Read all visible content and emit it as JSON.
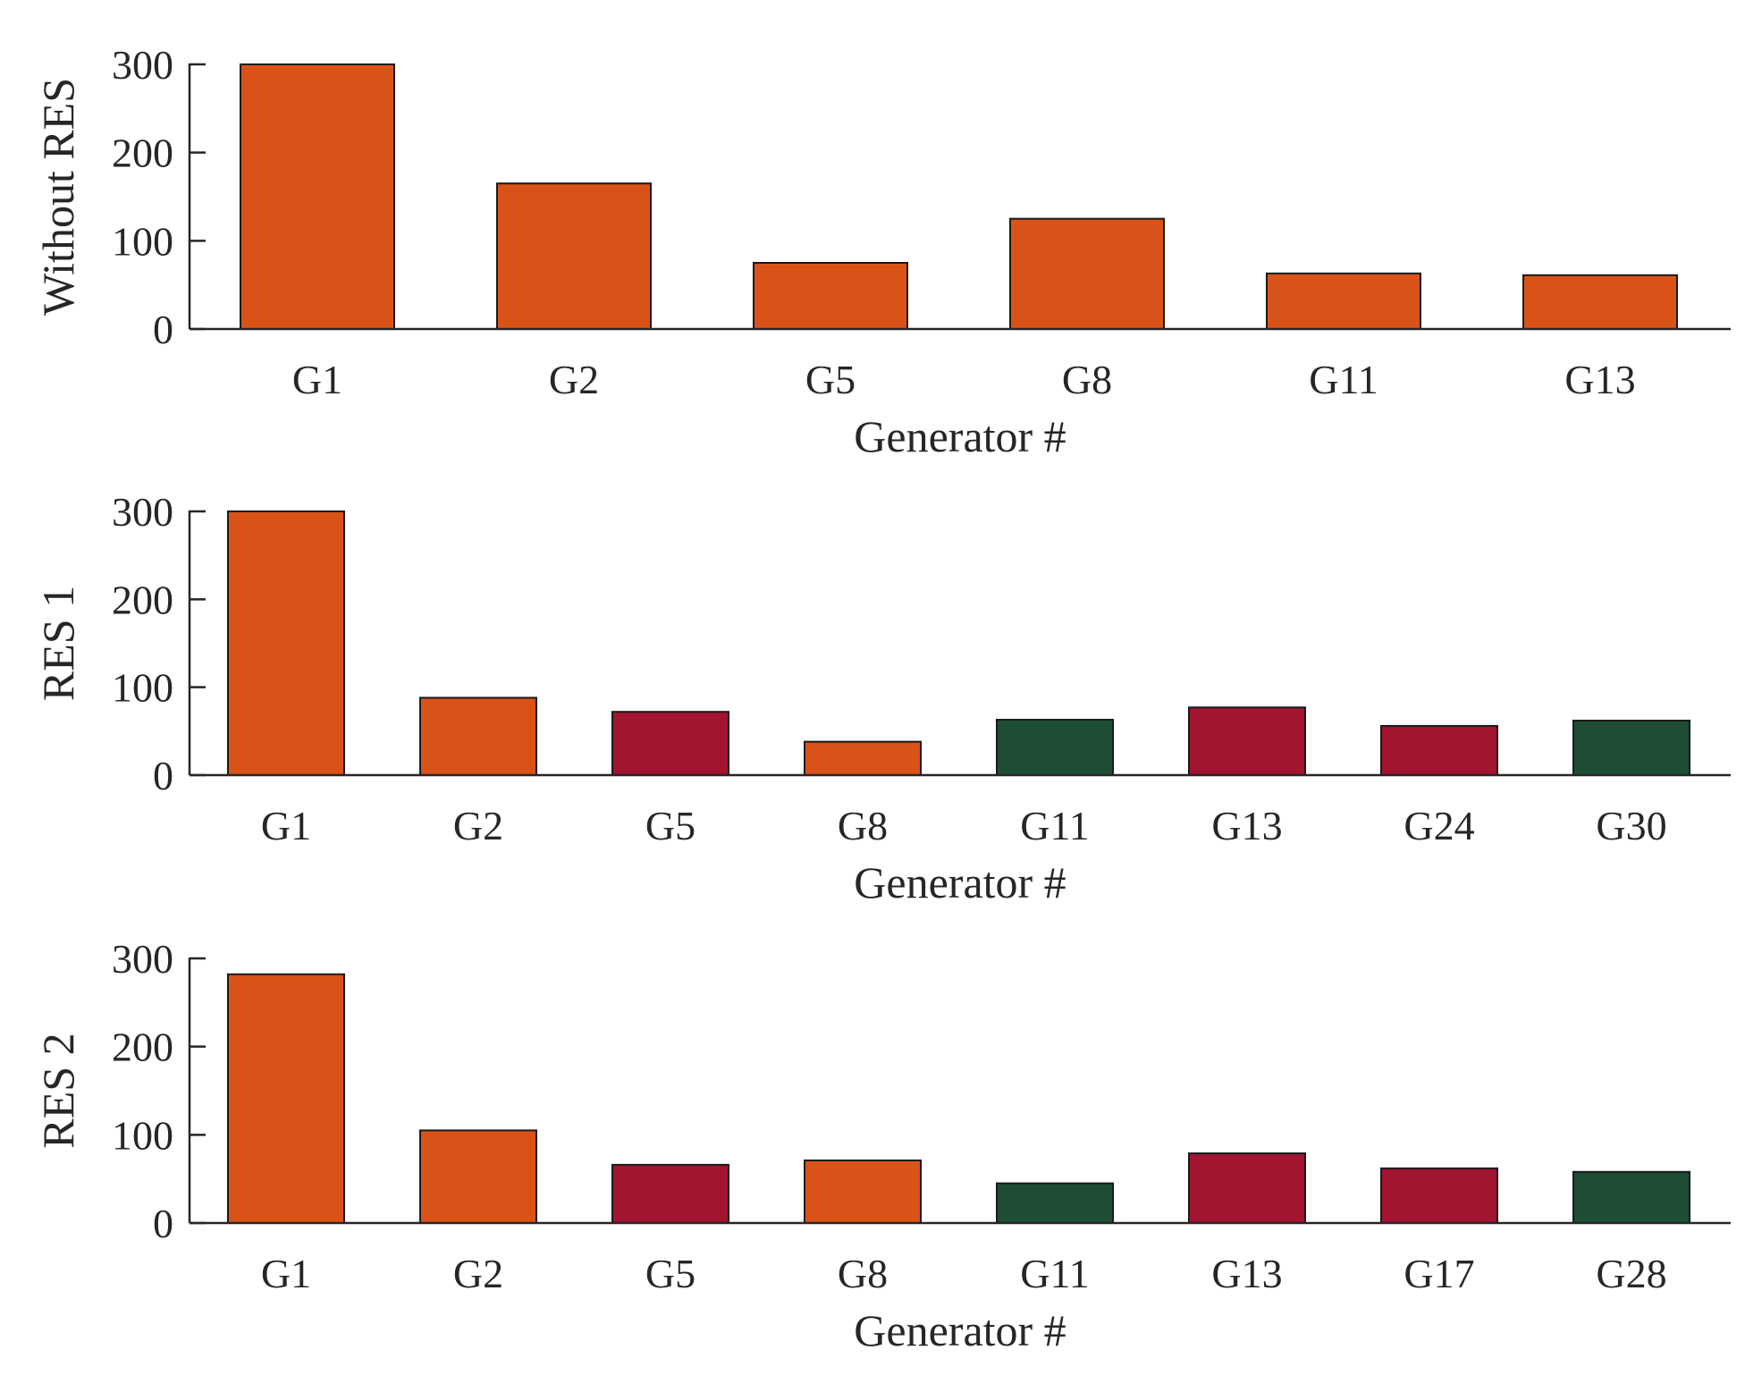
{
  "colors": {
    "orange": "#D95319",
    "red": "#A2142F",
    "green": "#1D4D35",
    "edge": "#1a1a1a",
    "axis": "#262626"
  },
  "chart_data": [
    {
      "type": "bar",
      "ylabel": "Without RES",
      "xlabel": "Generator #",
      "ylim": [
        0,
        300
      ],
      "yticks": [
        0,
        100,
        200,
        300
      ],
      "categories": [
        "G1",
        "G2",
        "G5",
        "G8",
        "G11",
        "G13"
      ],
      "values": [
        300,
        165,
        75,
        125,
        63,
        61
      ],
      "bar_colors": [
        "orange",
        "orange",
        "orange",
        "orange",
        "orange",
        "orange"
      ]
    },
    {
      "type": "bar",
      "ylabel": "RES 1",
      "xlabel": "Generator #",
      "ylim": [
        0,
        300
      ],
      "yticks": [
        0,
        100,
        200,
        300
      ],
      "categories": [
        "G1",
        "G2",
        "G5",
        "G8",
        "G11",
        "G13",
        "G24",
        "G30"
      ],
      "values": [
        300,
        88,
        72,
        38,
        63,
        77,
        56,
        62
      ],
      "bar_colors": [
        "orange",
        "orange",
        "red",
        "orange",
        "green",
        "red",
        "red",
        "green"
      ]
    },
    {
      "type": "bar",
      "ylabel": "RES 2",
      "xlabel": "Generator #",
      "ylim": [
        0,
        300
      ],
      "yticks": [
        0,
        100,
        200,
        300
      ],
      "categories": [
        "G1",
        "G2",
        "G5",
        "G8",
        "G11",
        "G13",
        "G17",
        "G28"
      ],
      "values": [
        282,
        105,
        66,
        71,
        45,
        79,
        62,
        58
      ],
      "bar_colors": [
        "orange",
        "orange",
        "red",
        "orange",
        "green",
        "red",
        "red",
        "green"
      ]
    }
  ]
}
